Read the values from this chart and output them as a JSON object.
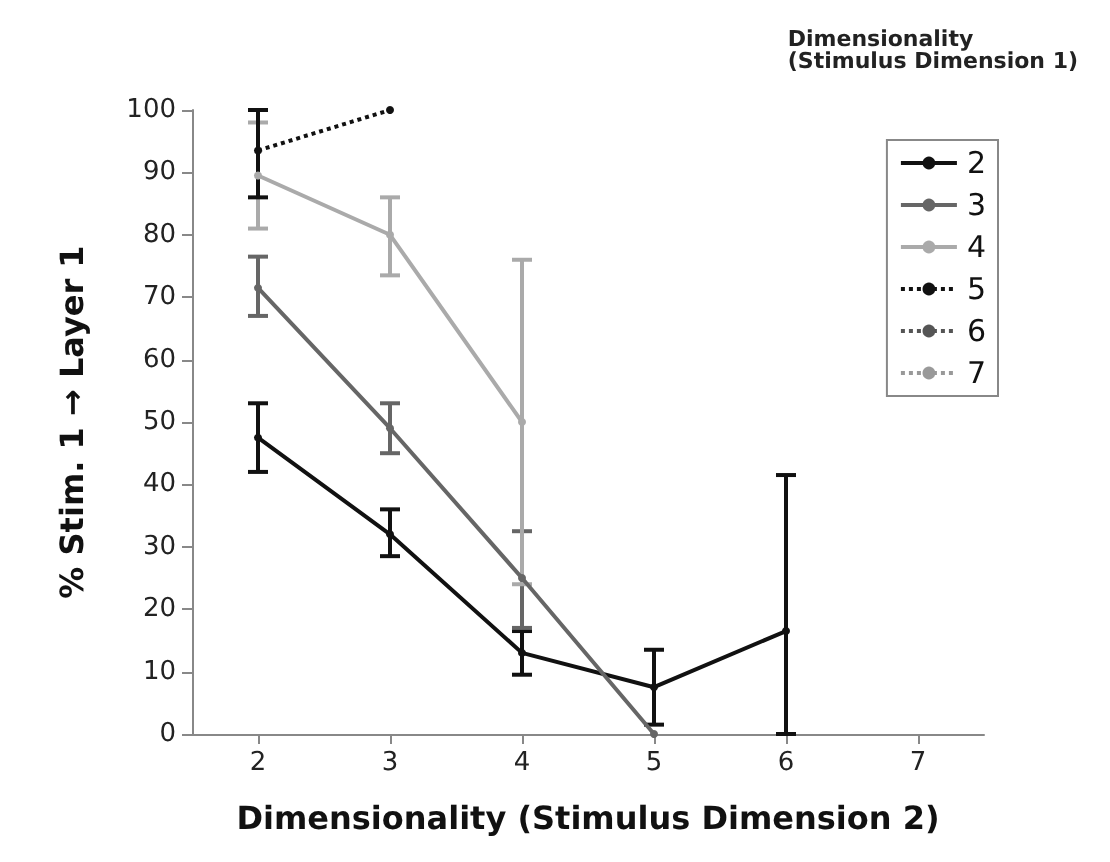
{
  "chart_data": {
    "type": "line",
    "xlabel": "Dimensionality (Stimulus Dimension 2)",
    "ylabel": "% Stim. 1 → Layer 1",
    "legend_title": "Dimensionality\n(Stimulus Dimension 1)",
    "xlim": [
      1.5,
      7.5
    ],
    "xticks": [
      2,
      3,
      4,
      5,
      6,
      7
    ],
    "ylim": [
      0,
      100
    ],
    "yticks": [
      0,
      10,
      20,
      30,
      40,
      50,
      60,
      70,
      80,
      90,
      100
    ],
    "grid": false,
    "legend": "top right",
    "marker": "circle",
    "series": [
      {
        "name": "2",
        "color": "#111111",
        "line_style": "solid",
        "x": [
          2,
          3,
          4,
          5,
          6
        ],
        "values": [
          47.5,
          32,
          13,
          7.5,
          16.5
        ],
        "errors": [
          [
            42,
            53
          ],
          [
            28.5,
            36
          ],
          [
            9.5,
            16.5
          ],
          [
            1.5,
            13.5
          ],
          [
            0,
            41.5
          ]
        ]
      },
      {
        "name": "3",
        "color": "#666666",
        "line_style": "solid",
        "x": [
          2,
          3,
          4,
          5
        ],
        "values": [
          71.5,
          49,
          25,
          0
        ],
        "errors": [
          [
            67,
            76.5
          ],
          [
            45,
            53
          ],
          [
            17,
            32.5
          ],
          null
        ]
      },
      {
        "name": "4",
        "color": "#aaaaaa",
        "line_style": "solid",
        "x": [
          2,
          3,
          4
        ],
        "values": [
          89.5,
          80,
          50
        ],
        "errors": [
          [
            81,
            98
          ],
          [
            73.5,
            86
          ],
          [
            24,
            76
          ]
        ]
      },
      {
        "name": "5",
        "color": "#111111",
        "line_style": "dotted",
        "x": [
          2,
          3
        ],
        "values": [
          93.5,
          100
        ],
        "errors": [
          [
            86,
            100
          ],
          null
        ]
      },
      {
        "name": "6",
        "color": "#555555",
        "line_style": "dotted"
      },
      {
        "name": "7",
        "color": "#999999",
        "line_style": "dotted"
      }
    ]
  }
}
